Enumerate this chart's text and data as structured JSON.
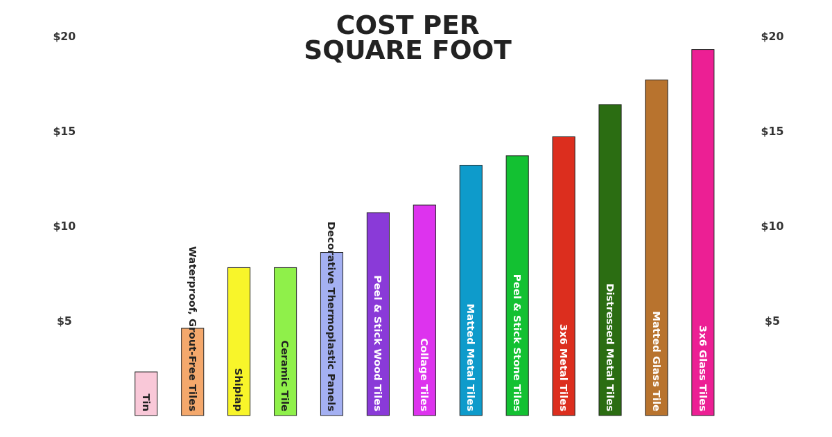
{
  "chart_data": {
    "type": "bar",
    "title": "COST PER\nSQUARE FOOT",
    "categories": [
      "Tin",
      "Waterproof, Grout-Free Tiles",
      "Shiplap",
      "Ceramic Tile",
      "Decorative Thermoplastic Panels",
      "Peel & Stick Wood Tiles",
      "Collage Tiles",
      "Matted Metal Tiles",
      "Peel & Stick Stone Tiles",
      "3x6 Metal Tiles",
      "Distressed Metal Tiles",
      "Matted Glass Tile",
      "3x6 Glass Tiles"
    ],
    "values": [
      2.3,
      4.6,
      7.8,
      7.8,
      8.6,
      10.7,
      11.1,
      13.2,
      13.7,
      14.7,
      16.4,
      17.7,
      19.3
    ],
    "colors": [
      "#f9c8d8",
      "#f4a86c",
      "#f8f52a",
      "#8ff04a",
      "#a4b0f2",
      "#8a3ad8",
      "#dd33ee",
      "#0e9bcb",
      "#13c132",
      "#dc2e1e",
      "#2b6d12",
      "#b8732e",
      "#ec1f94"
    ],
    "ylim": [
      0,
      20
    ],
    "yticks": [
      {
        "value": 5,
        "label": "$5"
      },
      {
        "value": 10,
        "label": "$10"
      },
      {
        "value": 15,
        "label": "$15"
      },
      {
        "value": 20,
        "label": "$20"
      }
    ],
    "y2lim": [
      0,
      20
    ],
    "y2ticks": [
      {
        "value": 5,
        "label": "$5"
      },
      {
        "value": 10,
        "label": "$10"
      },
      {
        "value": 15,
        "label": "$15"
      },
      {
        "value": 20,
        "label": "$20"
      }
    ],
    "grid": false
  }
}
